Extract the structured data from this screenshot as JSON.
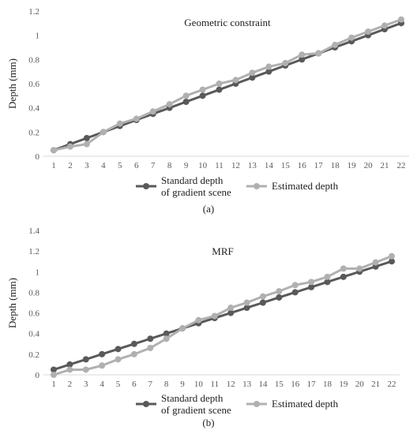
{
  "chart_data": [
    {
      "type": "line",
      "title": "Geometric constraint",
      "ylabel": "Depth (mm)",
      "xlabel": "",
      "caption": "(a)",
      "ylim": [
        0,
        1.2
      ],
      "yticks": [
        "0",
        "0.2",
        "0.4",
        "0.6",
        "0.8",
        "1",
        "1.2"
      ],
      "categories": [
        "1",
        "2",
        "3",
        "4",
        "5",
        "6",
        "7",
        "8",
        "9",
        "10",
        "11",
        "12",
        "13",
        "14",
        "15",
        "16",
        "17",
        "18",
        "19",
        "20",
        "21",
        "22"
      ],
      "grid": false,
      "legend_position": "bottom",
      "series": [
        {
          "name": "Standard depth of gradient scene",
          "name_lines": [
            "Standard depth",
            "of gradient scene"
          ],
          "color": "#595959",
          "values": [
            0.05,
            0.1,
            0.15,
            0.2,
            0.25,
            0.3,
            0.35,
            0.4,
            0.45,
            0.5,
            0.55,
            0.6,
            0.65,
            0.7,
            0.75,
            0.8,
            0.85,
            0.9,
            0.95,
            1.0,
            1.05,
            1.1
          ]
        },
        {
          "name": "Estimated depth",
          "name_lines": [
            "Estimated depth"
          ],
          "color": "#b0b0b0",
          "values": [
            0.05,
            0.08,
            0.1,
            0.2,
            0.27,
            0.31,
            0.37,
            0.43,
            0.5,
            0.55,
            0.6,
            0.63,
            0.69,
            0.74,
            0.77,
            0.84,
            0.85,
            0.92,
            0.98,
            1.03,
            1.08,
            1.13
          ]
        }
      ]
    },
    {
      "type": "line",
      "title": "MRF",
      "ylabel": "Depth (mm)",
      "xlabel": "",
      "caption": "(b)",
      "ylim": [
        0,
        1.4
      ],
      "yticks": [
        "0",
        "0.2",
        "0.4",
        "0.6",
        "0.8",
        "1",
        "1.2",
        "1.4"
      ],
      "categories": [
        "1",
        "2",
        "3",
        "4",
        "5",
        "6",
        "7",
        "8",
        "9",
        "10",
        "11",
        "12",
        "13",
        "14",
        "15",
        "16",
        "17",
        "18",
        "19",
        "20",
        "21",
        "22"
      ],
      "grid": false,
      "legend_position": "bottom",
      "series": [
        {
          "name": "Standard depth of gradient scene",
          "name_lines": [
            "Standard depth",
            "of gradient scene"
          ],
          "color": "#595959",
          "values": [
            0.05,
            0.1,
            0.15,
            0.2,
            0.25,
            0.3,
            0.35,
            0.4,
            0.45,
            0.5,
            0.55,
            0.6,
            0.65,
            0.7,
            0.75,
            0.8,
            0.85,
            0.9,
            0.95,
            1.0,
            1.05,
            1.1
          ]
        },
        {
          "name": "Estimated depth",
          "name_lines": [
            "Estimated depth"
          ],
          "color": "#b0b0b0",
          "values": [
            0.0,
            0.05,
            0.05,
            0.09,
            0.15,
            0.2,
            0.26,
            0.35,
            0.45,
            0.53,
            0.57,
            0.65,
            0.7,
            0.76,
            0.81,
            0.87,
            0.9,
            0.95,
            1.03,
            1.03,
            1.09,
            1.15
          ]
        }
      ]
    }
  ]
}
